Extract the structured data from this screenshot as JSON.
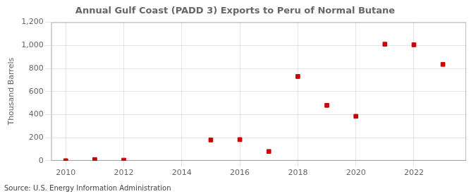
{
  "chart_data": {
    "type": "scatter",
    "title": "Annual Gulf Coast (PADD 3) Exports to Peru of Normal Butane",
    "y_label": "Thousand Barrels",
    "annotations": [
      "Source: U.S. Energy Information Administration"
    ],
    "x": [
      2010,
      2011,
      2012,
      2015,
      2016,
      2017,
      2018,
      2019,
      2020,
      2021,
      2022,
      2023
    ],
    "values": [
      0,
      10,
      5,
      180,
      183,
      80,
      730,
      480,
      385,
      1010,
      1005,
      835
    ],
    "color": "#cc0000",
    "marker": "square",
    "xlim": [
      2009.5,
      2023.8
    ],
    "xticks": [
      2010,
      2012,
      2014,
      2016,
      2018,
      2020,
      2022
    ],
    "ylim": [
      0,
      1200
    ],
    "yticks": [
      0,
      200,
      400,
      600,
      800,
      {
        "value": 1000,
        "label": "1,000"
      },
      {
        "value": 1200,
        "label": "1,200"
      }
    ],
    "grid": true
  }
}
